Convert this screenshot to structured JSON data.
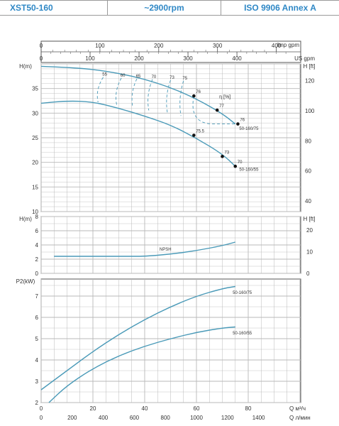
{
  "header": {
    "model": "XST50-160",
    "speed": "~2900rpm",
    "standard": "ISO 9906   Annex A"
  },
  "colors": {
    "accent": "#2f88c6",
    "grid": "#b8b8b8",
    "curve": "#4a9ab8",
    "axis": "#555555",
    "text": "#333333"
  },
  "chart_data": [
    {
      "type": "line",
      "panel": "head",
      "top_axes": {
        "imp_gpm": {
          "label": "Imp gpm",
          "ticks": [
            "0",
            "100",
            "200",
            "300",
            "400"
          ]
        },
        "us_gpm": {
          "label": "US gpm",
          "ticks": [
            "0",
            "100",
            "200",
            "300",
            "400"
          ]
        }
      },
      "ylabel": "H(m)",
      "ylabel_right": "H [ft]",
      "yticks": [
        "10",
        "15",
        "20",
        "25",
        "30",
        "35"
      ],
      "yticks_right": [
        "40",
        "60",
        "80",
        "100",
        "120"
      ],
      "ylim": [
        10,
        40
      ],
      "xlim": [
        0,
        85
      ],
      "series": [
        {
          "name": "50-160/75",
          "x": [
            0,
            10,
            20,
            30,
            40,
            50,
            60,
            70,
            75
          ],
          "values": [
            39.5,
            39.3,
            38.9,
            38.1,
            36.9,
            35.2,
            32.9,
            29.9,
            27.8
          ]
        },
        {
          "name": "50-160/55",
          "x": [
            0,
            10,
            20,
            30,
            40,
            50,
            60,
            70,
            75
          ],
          "values": [
            32.0,
            32.5,
            32.3,
            31.0,
            29.4,
            27.6,
            24.9,
            21.7,
            19.2
          ]
        }
      ],
      "efficiency_label": "η [%]",
      "efficiency_points_75": [
        {
          "label": "76",
          "x": 59,
          "y": 33.5
        },
        {
          "label": "77",
          "x": 68,
          "y": 30.6
        },
        {
          "label": "76",
          "x": 76,
          "y": 27.8
        }
      ],
      "efficiency_points_55": [
        {
          "label": "75.5",
          "x": 59,
          "y": 25.5
        },
        {
          "label": "73",
          "x": 70,
          "y": 21.2
        },
        {
          "label": "70",
          "x": 75,
          "y": 19.2
        }
      ],
      "iso_labels": [
        "55",
        "60",
        "65",
        "70",
        "73",
        "75"
      ]
    },
    {
      "type": "line",
      "panel": "npsh",
      "ylabel": "H(m)",
      "ylabel_right": "H [ft]",
      "yticks": [
        "0",
        "2",
        "4",
        "6",
        "8"
      ],
      "yticks_right": [
        "0",
        "10",
        "20"
      ],
      "ylim": [
        0,
        8
      ],
      "series": [
        {
          "name": "NPSH",
          "x": [
            5,
            15,
            25,
            35,
            40,
            50,
            60,
            70,
            75
          ],
          "values": [
            2.4,
            2.4,
            2.4,
            2.4,
            2.4,
            2.7,
            3.2,
            3.9,
            4.4
          ]
        }
      ]
    },
    {
      "type": "line",
      "panel": "power",
      "ylabel": "P2(kW)",
      "yticks": [
        "2",
        "3",
        "4",
        "5",
        "6",
        "7"
      ],
      "ylim": [
        2,
        7.8
      ],
      "xlabel": "Q  м³/ч",
      "xlabel2": "Q  л/мин",
      "xticks": [
        "0",
        "20",
        "40",
        "60",
        "80"
      ],
      "xticks2": [
        "0",
        "200",
        "400",
        "600",
        "800",
        "1000",
        "1200",
        "1400"
      ],
      "series": [
        {
          "name": "50-160/75",
          "x": [
            0,
            10,
            20,
            30,
            40,
            50,
            60,
            70,
            75
          ],
          "values": [
            2.6,
            3.5,
            4.4,
            5.2,
            5.9,
            6.5,
            7.0,
            7.35,
            7.45
          ]
        },
        {
          "name": "50-160/55",
          "x": [
            3,
            10,
            20,
            30,
            40,
            50,
            60,
            70,
            75
          ],
          "values": [
            2.0,
            2.8,
            3.6,
            4.2,
            4.65,
            5.0,
            5.3,
            5.5,
            5.55
          ]
        }
      ]
    }
  ]
}
